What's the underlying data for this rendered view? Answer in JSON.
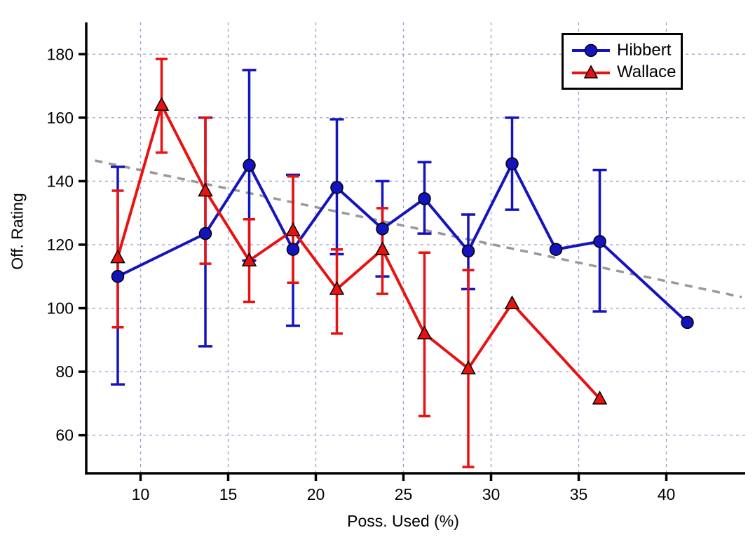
{
  "chart_data": {
    "type": "line",
    "title": "",
    "xlabel": "Poss. Used (%)",
    "ylabel": "Off. Rating",
    "xlim": [
      6.9,
      44.5
    ],
    "ylim": [
      48,
      190
    ],
    "x_ticks": [
      10,
      15,
      20,
      25,
      30,
      35,
      40
    ],
    "y_ticks": [
      60,
      80,
      100,
      120,
      140,
      160,
      180
    ],
    "grid": "dashed, both axes at major ticks",
    "grid_color": "#9A9AD0",
    "axis_color": "#000000",
    "legend_position": "top-right",
    "series": [
      {
        "name": "Hibbert",
        "color": "#1414BE",
        "marker": "circle",
        "points": [
          {
            "x": 8.7,
            "y": 110,
            "lo": 76,
            "hi": 144.5
          },
          {
            "x": 13.7,
            "y": 123.5,
            "lo": 88,
            "hi": 160
          },
          {
            "x": 16.2,
            "y": 145,
            "lo": 115,
            "hi": 175
          },
          {
            "x": 18.7,
            "y": 118.5,
            "lo": 94.5,
            "hi": 142
          },
          {
            "x": 21.2,
            "y": 138,
            "lo": 117,
            "hi": 159.5
          },
          {
            "x": 23.8,
            "y": 125,
            "lo": 110,
            "hi": 140
          },
          {
            "x": 26.2,
            "y": 134.5,
            "lo": 123.5,
            "hi": 146
          },
          {
            "x": 28.7,
            "y": 118,
            "lo": 106,
            "hi": 129.5
          },
          {
            "x": 31.2,
            "y": 145.5,
            "lo": 131,
            "hi": 160
          },
          {
            "x": 33.7,
            "y": 118.5,
            "lo": null,
            "hi": null
          },
          {
            "x": 36.2,
            "y": 121,
            "lo": 99,
            "hi": 143.5
          },
          {
            "x": 41.2,
            "y": 95.5,
            "lo": null,
            "hi": null
          }
        ]
      },
      {
        "name": "Wallace",
        "color": "#E81212",
        "marker": "triangle",
        "points": [
          {
            "x": 8.7,
            "y": 116,
            "lo": 94,
            "hi": 137
          },
          {
            "x": 11.2,
            "y": 164,
            "lo": 149,
            "hi": 178.5
          },
          {
            "x": 13.7,
            "y": 137,
            "lo": 114,
            "hi": 160
          },
          {
            "x": 16.2,
            "y": 115,
            "lo": 102,
            "hi": 128
          },
          {
            "x": 18.7,
            "y": 124.5,
            "lo": 108,
            "hi": 141.5
          },
          {
            "x": 21.2,
            "y": 106,
            "lo": 92,
            "hi": 118.5
          },
          {
            "x": 23.8,
            "y": 118.5,
            "lo": 104.5,
            "hi": 131.5
          },
          {
            "x": 26.2,
            "y": 92,
            "lo": 66,
            "hi": 117.5
          },
          {
            "x": 28.7,
            "y": 81,
            "lo": 50,
            "hi": 112
          },
          {
            "x": 31.2,
            "y": 101.5,
            "lo": null,
            "hi": null
          },
          {
            "x": 36.2,
            "y": 71.5,
            "lo": null,
            "hi": null
          }
        ]
      }
    ],
    "trend_line": {
      "style": "dashed",
      "color": "#999999",
      "x1": 7.4,
      "y1": 146.5,
      "x2": 44.3,
      "y2": 103.5
    }
  }
}
